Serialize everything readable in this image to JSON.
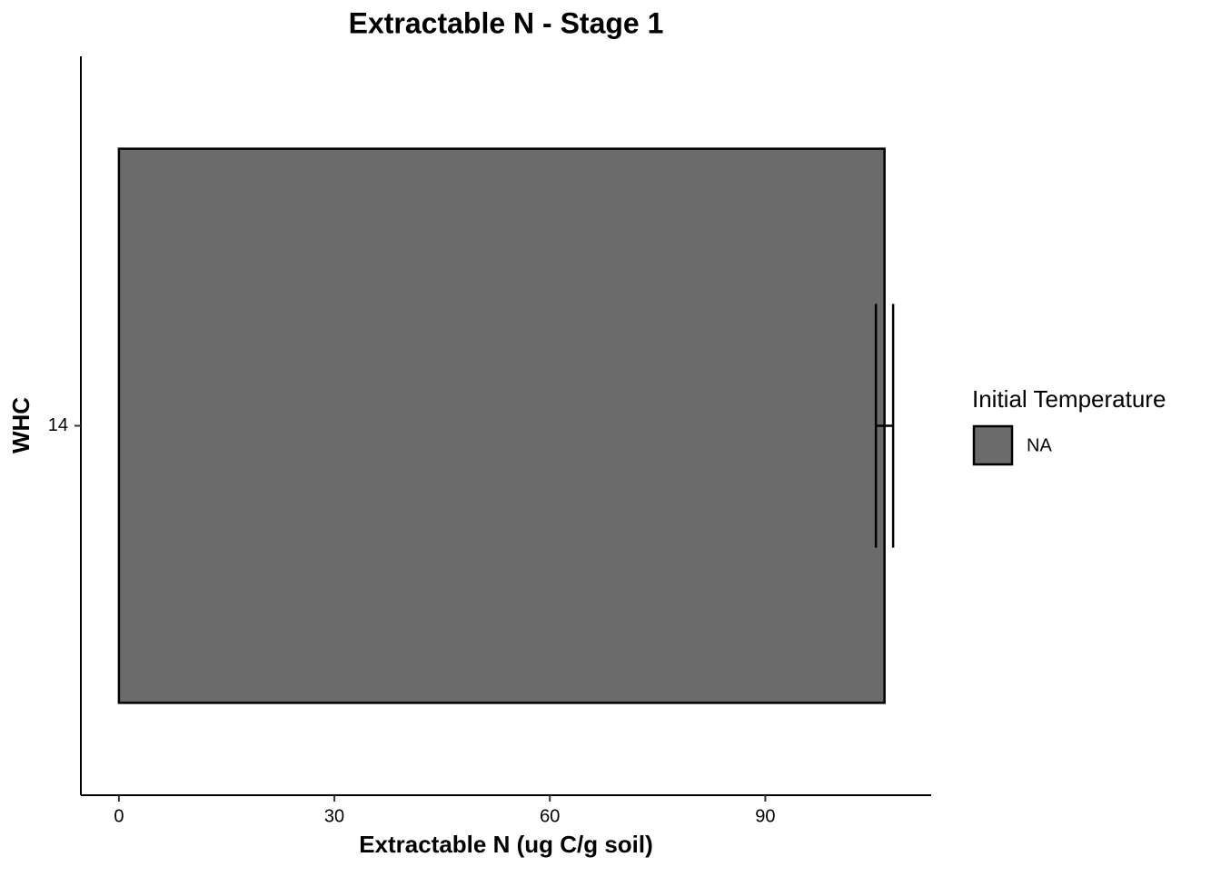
{
  "chart_data": {
    "type": "hbar",
    "title": "Extractable N - Stage 1",
    "x_label": "Extractable N (ug C/g soil)",
    "y_label": "WHC",
    "categories": [
      "14"
    ],
    "series": [
      {
        "name": "NA",
        "color": "#6b6b6b",
        "values": [
          106.6
        ],
        "errors": [
          1.2
        ]
      }
    ],
    "legend_title": "Initial Temperature",
    "legend": "right",
    "xlim": [
      -5.3,
      113.1
    ],
    "xticks": [
      0,
      30,
      60,
      90
    ],
    "grid": false
  }
}
